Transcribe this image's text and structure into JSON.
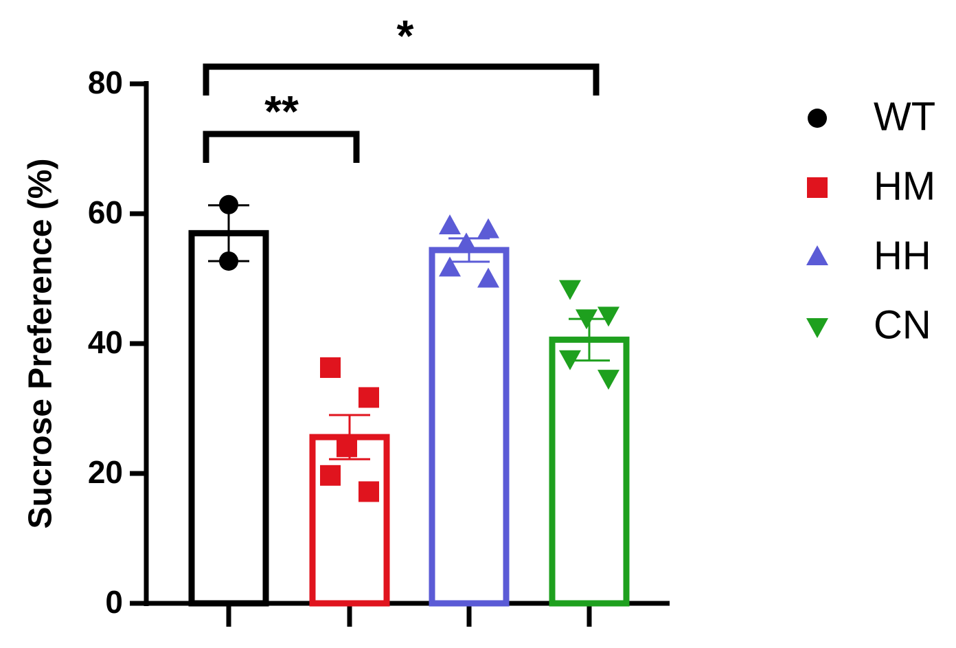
{
  "chart_data": {
    "type": "bar",
    "y_label": "Sucrose Preference (%)",
    "categories": [
      null,
      null,
      null,
      null
    ],
    "ylim": [
      0,
      80
    ],
    "yticks": [
      0,
      20,
      40,
      60,
      80
    ],
    "grid": false,
    "legend": "right",
    "groups": [
      {
        "name": "WT",
        "color": "#000000",
        "marker": "circle",
        "value": 57,
        "error": 4.3,
        "points": [
          61.4,
          52.7
        ]
      },
      {
        "name": "HM",
        "color": "#e0141e",
        "marker": "square",
        "value": 25.6,
        "error": 3.4,
        "points": [
          36.3,
          31.7,
          24.1,
          19.7,
          17.2
        ]
      },
      {
        "name": "HH",
        "color": "#5b5bd6",
        "marker": "triangle-up",
        "value": 54.4,
        "error": 1.8,
        "points": [
          58.1,
          57.5,
          55.3,
          51.6,
          49.9
        ]
      },
      {
        "name": "CN",
        "color": "#1ea01e",
        "marker": "triangle-down",
        "value": 40.6,
        "error": 3.2,
        "points": [
          48.5,
          44.4,
          44.0,
          37.7,
          34.7
        ]
      }
    ],
    "annotations": [
      {
        "text": "**",
        "from": 0,
        "to": 1
      },
      {
        "text": "*",
        "from": 0,
        "to": 3
      }
    ]
  }
}
